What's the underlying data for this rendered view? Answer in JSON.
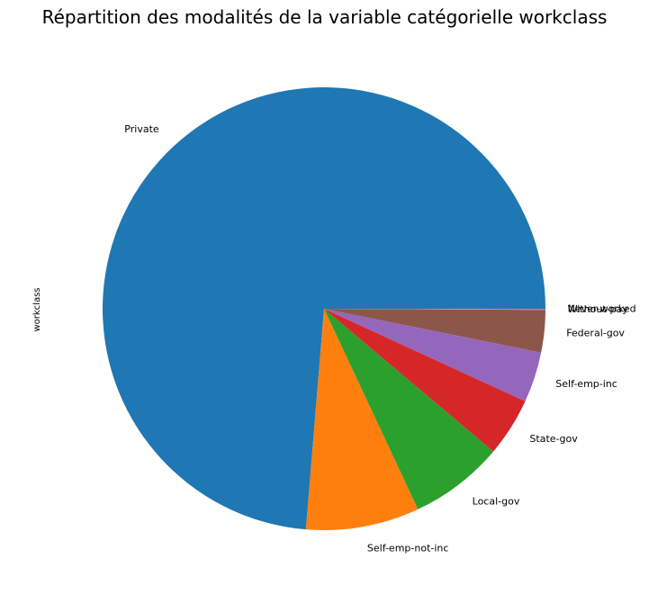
{
  "chart_data": {
    "type": "pie",
    "title": "Répartition des modalités de la variable catégorielle workclass",
    "ylabel": "workclass",
    "start_angle_deg": 0,
    "direction": "counterclockwise",
    "slices": [
      {
        "label": "Private",
        "value": 73.9,
        "color": "#1f77b4"
      },
      {
        "label": "Self-emp-not-inc",
        "value": 8.3,
        "color": "#ff7f0e"
      },
      {
        "label": "Local-gov",
        "value": 6.9,
        "color": "#2ca02c"
      },
      {
        "label": "State-gov",
        "value": 4.3,
        "color": "#d62728"
      },
      {
        "label": "Self-emp-inc",
        "value": 3.7,
        "color": "#9467bd"
      },
      {
        "label": "Federal-gov",
        "value": 3.1,
        "color": "#8c564b"
      },
      {
        "label": "Without-pay",
        "value": 0.05,
        "color": "#e377c2"
      },
      {
        "label": "Never-worked",
        "value": 0.03,
        "color": "#7f7f7f"
      }
    ]
  }
}
